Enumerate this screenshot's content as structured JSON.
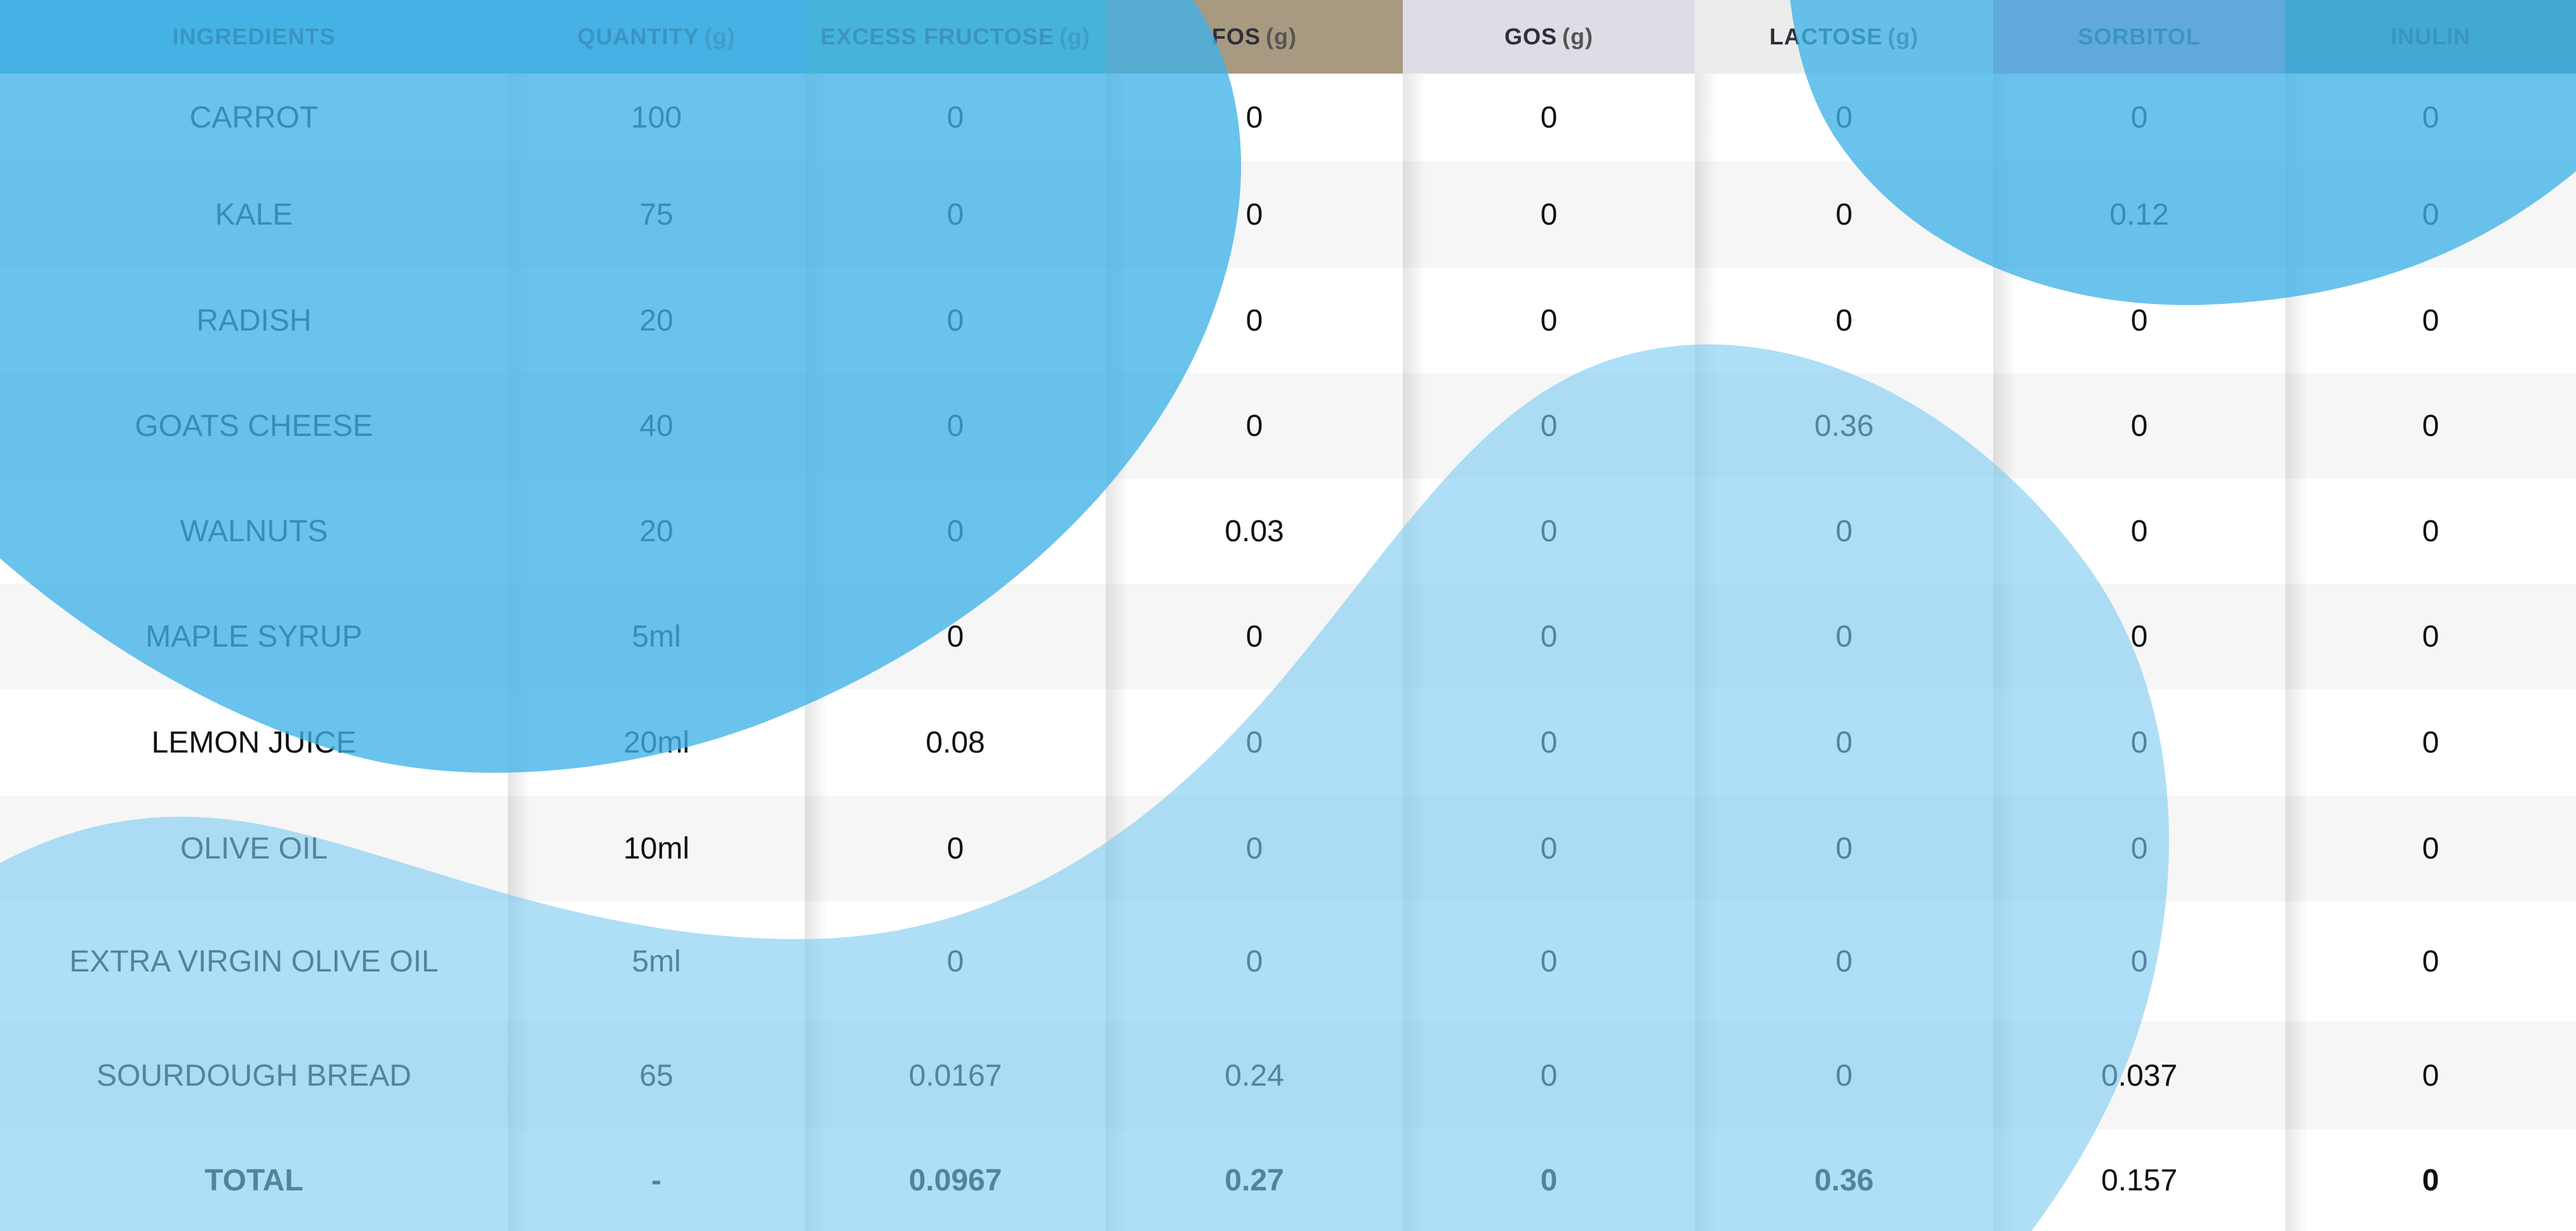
{
  "table": {
    "headers": [
      {
        "label": "INGREDIENTS",
        "unit": ""
      },
      {
        "label": "QUANTITY",
        "unit": "(g)"
      },
      {
        "label": "EXCESS FRUCTOSE",
        "unit": "(g)"
      },
      {
        "label": "FOS",
        "unit": "(g)"
      },
      {
        "label": "GOS",
        "unit": "(g)"
      },
      {
        "label": "LACTOSE",
        "unit": "(g)"
      },
      {
        "label": "SORBITOL",
        "unit": ""
      },
      {
        "label": "INULIN",
        "unit": ""
      }
    ],
    "rows": [
      [
        "CARROT",
        "100",
        "0",
        "0",
        "0",
        "0",
        "0",
        "0"
      ],
      [
        "KALE",
        "75",
        "0",
        "0",
        "0",
        "0",
        "0.12",
        "0"
      ],
      [
        "RADISH",
        "20",
        "0",
        "0",
        "0",
        "0",
        "0",
        "0"
      ],
      [
        "GOATS CHEESE",
        "40",
        "0",
        "0",
        "0",
        "0.36",
        "0",
        "0"
      ],
      [
        "WALNUTS",
        "20",
        "0",
        "0.03",
        "0",
        "0",
        "0",
        "0"
      ],
      [
        "MAPLE SYRUP",
        "5ml",
        "0",
        "0",
        "0",
        "0",
        "0",
        "0"
      ],
      [
        "LEMON JUICE",
        "20ml",
        "0.08",
        "0",
        "0",
        "0",
        "0",
        "0"
      ],
      [
        "OLIVE OIL",
        "10ml",
        "0",
        "0",
        "0",
        "0",
        "0",
        "0"
      ],
      [
        "EXTRA VIRGIN OLIVE OIL",
        "5ml",
        "0",
        "0",
        "0",
        "0",
        "0",
        "0"
      ],
      [
        "SOURDOUGH BREAD",
        "65",
        "0.0167",
        "0.24",
        "0",
        "0",
        "0.037",
        "0"
      ]
    ],
    "total": [
      "TOTAL",
      "-",
      "0.0967",
      "0.27",
      "0",
      "0.36",
      "0.157",
      "0"
    ]
  },
  "colors": {
    "ingredients_header": "#5bb0dc",
    "quantity_header": "#5aaed8",
    "excess_fructose_header": "#5fb5a8",
    "fos_header": "#a89a80",
    "gos_header": "#dddde6",
    "lactose_header": "#ececec",
    "sorbitol_header": "#d98ab0",
    "inulin_header": "#4f8a8e",
    "blob_dark": "#46b4e6",
    "blob_light": "#8fd4f2"
  }
}
